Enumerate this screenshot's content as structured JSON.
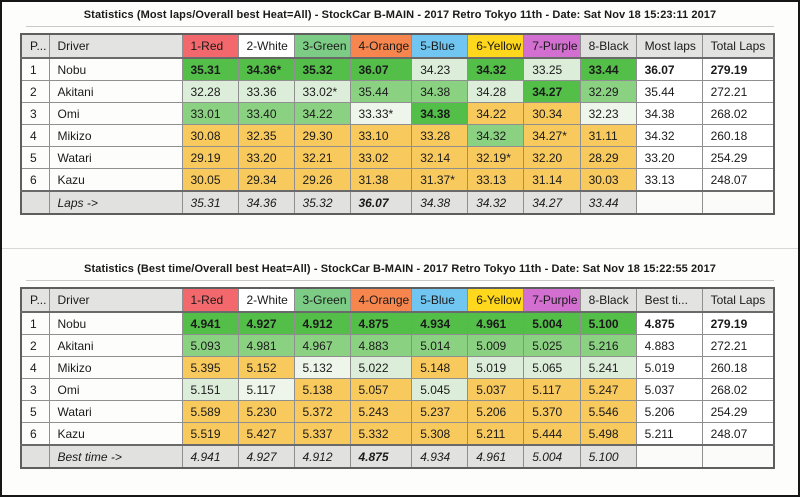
{
  "colors": {
    "cell_best_green": "#53be48",
    "cell_medium_green": "#8bd182",
    "cell_pale_green": "#dceed9",
    "cell_faint_green": "#eef5ea",
    "cell_amber": "#f8c95d",
    "header_gray": "#e3e3e1",
    "header_red": "#f2686c",
    "header_white": "#ffffff",
    "header_green": "#7ccc86",
    "header_orange": "#f6864d",
    "header_blue": "#70c6f1",
    "header_yellow": "#ffd71d",
    "header_purple": "#d26fd0",
    "footer_gray": "#e1e1df"
  },
  "tables": [
    {
      "title": "Statistics (Most laps/Overall best Heat=All) - StockCar B-MAIN - 2017 Retro Tokyo 11th - Date: Sat Nov 18 15:23:11 2017",
      "columns": [
        {
          "label": "P...",
          "style": "gray"
        },
        {
          "label": "Driver",
          "style": "gray"
        },
        {
          "label": "1-Red",
          "style": "red"
        },
        {
          "label": "2-White",
          "style": "white"
        },
        {
          "label": "3-Green",
          "style": "green"
        },
        {
          "label": "4-Orange",
          "style": "orange"
        },
        {
          "label": "5-Blue",
          "style": "blue"
        },
        {
          "label": "6-Yellow",
          "style": "yellow"
        },
        {
          "label": "7-Purple",
          "style": "purple"
        },
        {
          "label": "8-Black",
          "style": "black"
        },
        {
          "label": "Most laps",
          "style": "gray"
        },
        {
          "label": "Total Laps",
          "style": "gray",
          "bold": true
        }
      ],
      "rows": [
        {
          "pos": "1",
          "driver": "Nobu",
          "cells": [
            {
              "v": "35.31",
              "c": "g3",
              "b": 1
            },
            {
              "v": "34.36*",
              "c": "g3",
              "b": 1
            },
            {
              "v": "35.32",
              "c": "g3",
              "b": 1
            },
            {
              "v": "36.07",
              "c": "g3",
              "b": 1
            },
            {
              "v": "34.23",
              "c": "g1"
            },
            {
              "v": "34.32",
              "c": "g3",
              "b": 1
            },
            {
              "v": "33.25",
              "c": "g1"
            },
            {
              "v": "33.44",
              "c": "g3",
              "b": 1
            }
          ],
          "best": "36.07",
          "total": "279.19",
          "bold": true
        },
        {
          "pos": "2",
          "driver": "Akitani",
          "cells": [
            {
              "v": "32.28",
              "c": "g1"
            },
            {
              "v": "33.36",
              "c": "g1"
            },
            {
              "v": "33.02*",
              "c": "g1"
            },
            {
              "v": "35.44",
              "c": "g2"
            },
            {
              "v": "34.38",
              "c": "g2"
            },
            {
              "v": "34.28",
              "c": "g1"
            },
            {
              "v": "34.27",
              "c": "g3",
              "b": 1
            },
            {
              "v": "32.29",
              "c": "g2"
            }
          ],
          "best": "35.44",
          "total": "272.21"
        },
        {
          "pos": "3",
          "driver": "Omi",
          "cells": [
            {
              "v": "33.01",
              "c": "g2"
            },
            {
              "v": "33.40",
              "c": "g2"
            },
            {
              "v": "34.22",
              "c": "g2"
            },
            {
              "v": "33.33*",
              "c": "g0"
            },
            {
              "v": "34.38",
              "c": "g3",
              "b": 1
            },
            {
              "v": "34.22",
              "c": "or"
            },
            {
              "v": "30.34",
              "c": "or"
            },
            {
              "v": "32.23",
              "c": "g0"
            }
          ],
          "best": "34.38",
          "total": "268.02"
        },
        {
          "pos": "4",
          "driver": "Mikizo",
          "cells": [
            {
              "v": "30.08",
              "c": "or"
            },
            {
              "v": "32.35",
              "c": "or"
            },
            {
              "v": "29.30",
              "c": "or"
            },
            {
              "v": "33.10",
              "c": "or"
            },
            {
              "v": "33.28",
              "c": "or"
            },
            {
              "v": "34.32",
              "c": "g2"
            },
            {
              "v": "34.27*",
              "c": "or"
            },
            {
              "v": "31.11",
              "c": "or"
            }
          ],
          "best": "34.32",
          "total": "260.18"
        },
        {
          "pos": "5",
          "driver": "Watari",
          "cells": [
            {
              "v": "29.19",
              "c": "or"
            },
            {
              "v": "33.20",
              "c": "or"
            },
            {
              "v": "32.21",
              "c": "or"
            },
            {
              "v": "33.02",
              "c": "or"
            },
            {
              "v": "32.14",
              "c": "or"
            },
            {
              "v": "32.19*",
              "c": "or"
            },
            {
              "v": "32.20",
              "c": "or"
            },
            {
              "v": "28.29",
              "c": "or"
            }
          ],
          "best": "33.20",
          "total": "254.29"
        },
        {
          "pos": "6",
          "driver": "Kazu",
          "cells": [
            {
              "v": "30.05",
              "c": "or"
            },
            {
              "v": "29.34",
              "c": "or"
            },
            {
              "v": "29.26",
              "c": "or"
            },
            {
              "v": "31.38",
              "c": "or"
            },
            {
              "v": "31.37*",
              "c": "or"
            },
            {
              "v": "33.13",
              "c": "or"
            },
            {
              "v": "31.14",
              "c": "or"
            },
            {
              "v": "30.03",
              "c": "or"
            }
          ],
          "best": "33.13",
          "total": "248.07"
        }
      ],
      "footer": {
        "label": "Laps ->",
        "values": [
          {
            "v": "35.31"
          },
          {
            "v": "34.36"
          },
          {
            "v": "35.32"
          },
          {
            "v": "36.07",
            "b": 1
          },
          {
            "v": "34.38"
          },
          {
            "v": "34.32"
          },
          {
            "v": "34.27"
          },
          {
            "v": "33.44"
          }
        ]
      }
    },
    {
      "title": "Statistics (Best time/Overall best Heat=All) - StockCar B-MAIN - 2017 Retro Tokyo 11th - Date: Sat Nov 18 15:22:55 2017",
      "columns": [
        {
          "label": "P...",
          "style": "gray"
        },
        {
          "label": "Driver",
          "style": "gray"
        },
        {
          "label": "1-Red",
          "style": "red"
        },
        {
          "label": "2-White",
          "style": "white"
        },
        {
          "label": "3-Green",
          "style": "green"
        },
        {
          "label": "4-Orange",
          "style": "orange"
        },
        {
          "label": "5-Blue",
          "style": "blue"
        },
        {
          "label": "6-Yellow",
          "style": "yellow"
        },
        {
          "label": "7-Purple",
          "style": "purple"
        },
        {
          "label": "8-Black",
          "style": "black"
        },
        {
          "label": "Best ti...",
          "style": "gray",
          "bold": true
        },
        {
          "label": "Total Laps",
          "style": "gray"
        }
      ],
      "rows": [
        {
          "pos": "1",
          "driver": "Nobu",
          "cells": [
            {
              "v": "4.941",
              "c": "g3",
              "b": 1
            },
            {
              "v": "4.927",
              "c": "g3",
              "b": 1
            },
            {
              "v": "4.912",
              "c": "g3",
              "b": 1
            },
            {
              "v": "4.875",
              "c": "g3",
              "b": 1
            },
            {
              "v": "4.934",
              "c": "g3",
              "b": 1
            },
            {
              "v": "4.961",
              "c": "g3",
              "b": 1
            },
            {
              "v": "5.004",
              "c": "g3",
              "b": 1
            },
            {
              "v": "5.100",
              "c": "g3",
              "b": 1
            }
          ],
          "best": "4.875",
          "total": "279.19",
          "bold": true
        },
        {
          "pos": "2",
          "driver": "Akitani",
          "cells": [
            {
              "v": "5.093",
              "c": "g2"
            },
            {
              "v": "4.981",
              "c": "g2"
            },
            {
              "v": "4.967",
              "c": "g2"
            },
            {
              "v": "4.883",
              "c": "g2"
            },
            {
              "v": "5.014",
              "c": "g2"
            },
            {
              "v": "5.009",
              "c": "g2"
            },
            {
              "v": "5.025",
              "c": "g2"
            },
            {
              "v": "5.216",
              "c": "g2"
            }
          ],
          "best": "4.883",
          "total": "272.21"
        },
        {
          "pos": "4",
          "driver": "Mikizo",
          "cells": [
            {
              "v": "5.395",
              "c": "or"
            },
            {
              "v": "5.152",
              "c": "or"
            },
            {
              "v": "5.132",
              "c": "g0"
            },
            {
              "v": "5.022",
              "c": "g1"
            },
            {
              "v": "5.148",
              "c": "or"
            },
            {
              "v": "5.019",
              "c": "g1"
            },
            {
              "v": "5.065",
              "c": "g1"
            },
            {
              "v": "5.241",
              "c": "g1"
            }
          ],
          "best": "5.019",
          "total": "260.18"
        },
        {
          "pos": "3",
          "driver": "Omi",
          "cells": [
            {
              "v": "5.151",
              "c": "g1"
            },
            {
              "v": "5.117",
              "c": "g0"
            },
            {
              "v": "5.138",
              "c": "or"
            },
            {
              "v": "5.057",
              "c": "or"
            },
            {
              "v": "5.045",
              "c": "g1"
            },
            {
              "v": "5.037",
              "c": "or"
            },
            {
              "v": "5.117",
              "c": "or"
            },
            {
              "v": "5.247",
              "c": "or"
            }
          ],
          "best": "5.037",
          "total": "268.02"
        },
        {
          "pos": "5",
          "driver": "Watari",
          "cells": [
            {
              "v": "5.589",
              "c": "or"
            },
            {
              "v": "5.230",
              "c": "or"
            },
            {
              "v": "5.372",
              "c": "or"
            },
            {
              "v": "5.243",
              "c": "or"
            },
            {
              "v": "5.237",
              "c": "or"
            },
            {
              "v": "5.206",
              "c": "or"
            },
            {
              "v": "5.370",
              "c": "or"
            },
            {
              "v": "5.546",
              "c": "or"
            }
          ],
          "best": "5.206",
          "total": "254.29"
        },
        {
          "pos": "6",
          "driver": "Kazu",
          "cells": [
            {
              "v": "5.519",
              "c": "or"
            },
            {
              "v": "5.427",
              "c": "or"
            },
            {
              "v": "5.337",
              "c": "or"
            },
            {
              "v": "5.332",
              "c": "or"
            },
            {
              "v": "5.308",
              "c": "or"
            },
            {
              "v": "5.211",
              "c": "or"
            },
            {
              "v": "5.444",
              "c": "or"
            },
            {
              "v": "5.498",
              "c": "or"
            }
          ],
          "best": "5.211",
          "total": "248.07"
        }
      ],
      "footer": {
        "label": "Best time ->",
        "values": [
          {
            "v": "4.941"
          },
          {
            "v": "4.927"
          },
          {
            "v": "4.912"
          },
          {
            "v": "4.875",
            "b": 1
          },
          {
            "v": "4.934"
          },
          {
            "v": "4.961"
          },
          {
            "v": "5.004"
          },
          {
            "v": "5.100"
          }
        ]
      }
    }
  ]
}
